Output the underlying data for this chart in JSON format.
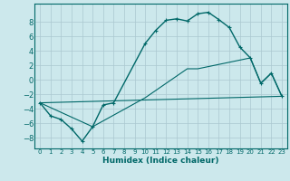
{
  "xlabel": "Humidex (Indice chaleur)",
  "xlim": [
    -0.5,
    23.5
  ],
  "ylim": [
    -9.5,
    10.5
  ],
  "background_color": "#cce8ec",
  "grid_color": "#aac8d0",
  "line_color": "#006868",
  "yticks": [
    -8,
    -6,
    -4,
    -2,
    0,
    2,
    4,
    6,
    8
  ],
  "xticks": [
    0,
    1,
    2,
    3,
    4,
    5,
    6,
    7,
    8,
    9,
    10,
    11,
    12,
    13,
    14,
    15,
    16,
    17,
    18,
    19,
    20,
    21,
    22,
    23
  ],
  "line1_x": [
    0,
    1,
    2,
    3,
    4,
    5,
    6,
    7,
    10,
    11,
    12,
    13,
    14,
    15,
    16,
    17,
    18,
    19,
    20,
    21,
    22,
    23
  ],
  "line1_y": [
    -3.2,
    -5.0,
    -5.5,
    -6.8,
    -8.5,
    -6.5,
    -3.5,
    -3.2,
    5.0,
    6.8,
    8.2,
    8.4,
    8.1,
    9.1,
    9.3,
    8.3,
    7.2,
    4.5,
    3.0,
    -0.5,
    0.9,
    -2.3
  ],
  "line2_x": [
    0,
    23
  ],
  "line2_y": [
    -3.2,
    -2.3
  ],
  "line3_x": [
    0,
    5,
    10,
    14,
    15,
    20,
    21,
    22,
    23
  ],
  "line3_y": [
    -3.2,
    -6.5,
    -2.5,
    1.5,
    1.5,
    3.0,
    -0.5,
    0.9,
    -2.3
  ]
}
